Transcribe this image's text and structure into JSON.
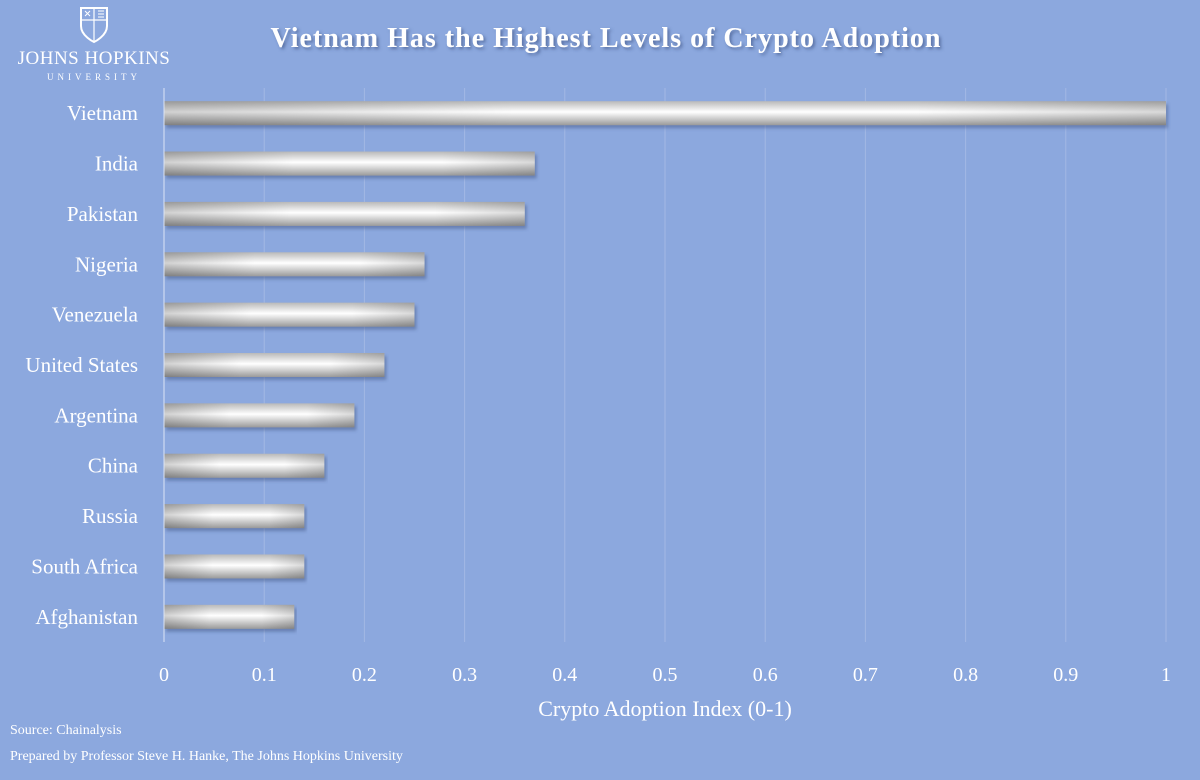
{
  "logo": {
    "name": "JOHNS HOPKINS",
    "sub": "UNIVERSITY"
  },
  "footer": {
    "source": "Source: Chainalysis",
    "prepared": "Prepared by Professor Steve H. Hanke, The Johns Hopkins University"
  },
  "colors": {
    "background": "#8ca8de",
    "text": "#ffffff",
    "bar_light": "#ffffff",
    "bar_dark": "#a9a9a9"
  },
  "chart_data": {
    "type": "bar",
    "orientation": "horizontal",
    "title": "Vietnam Has the Highest Levels of Crypto Adoption",
    "xlabel": "Crypto Adoption Index (0-1)",
    "ylabel": "",
    "categories": [
      "Vietnam",
      "India",
      "Pakistan",
      "Nigeria",
      "Venezuela",
      "United States",
      "Argentina",
      "China",
      "Russia",
      "South Africa",
      "Afghanistan"
    ],
    "values": [
      1.0,
      0.37,
      0.36,
      0.26,
      0.25,
      0.22,
      0.19,
      0.16,
      0.14,
      0.14,
      0.13
    ],
    "xlim": [
      0,
      1
    ],
    "xticks": [
      "0",
      "0.1",
      "0.2",
      "0.3",
      "0.4",
      "0.5",
      "0.6",
      "0.7",
      "0.8",
      "0.9",
      "1"
    ],
    "grid": true
  }
}
